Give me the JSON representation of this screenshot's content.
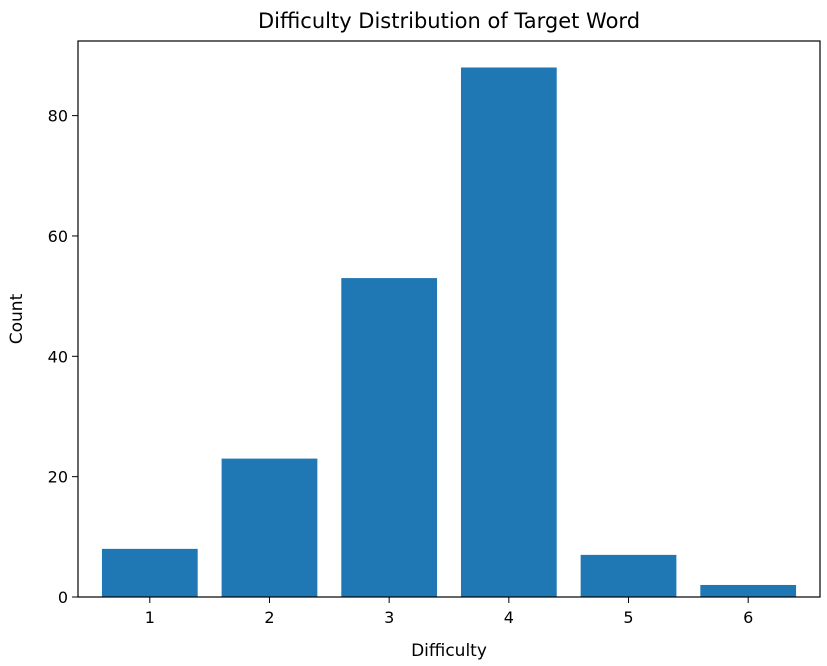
{
  "chart_data": {
    "type": "bar",
    "title": "Difficulty Distribution of Target Word",
    "xlabel": "Difficulty",
    "ylabel": "Count",
    "categories": [
      "1",
      "2",
      "3",
      "4",
      "5",
      "6"
    ],
    "x": [
      1,
      2,
      3,
      4,
      5,
      6
    ],
    "values": [
      8,
      23,
      53,
      88,
      7,
      2
    ],
    "xlim": [
      0.4,
      6.6
    ],
    "ylim": [
      0,
      92.4
    ],
    "yticks": [
      0,
      20,
      40,
      60,
      80
    ],
    "ytick_labels": [
      "0",
      "20",
      "40",
      "60",
      "80"
    ],
    "bar_width": 0.8,
    "bar_color": "#1f77b4",
    "grid": false,
    "legend": "none"
  }
}
